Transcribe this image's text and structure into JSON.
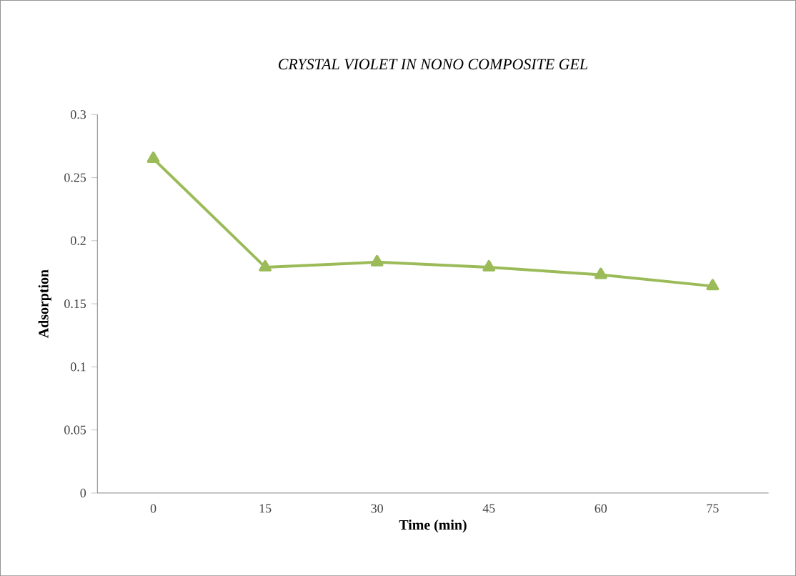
{
  "chart_data": {
    "type": "line",
    "title": "CRYSTAL VIOLET IN NONO COMPOSITE  GEL",
    "xlabel": "Time (min)",
    "ylabel": "Adsorption",
    "categories": [
      "0",
      "15",
      "30",
      "45",
      "60",
      "75"
    ],
    "series": [
      {
        "color": "#9bbb59",
        "values": [
          0.265,
          0.179,
          0.183,
          0.179,
          0.173,
          0.164
        ]
      }
    ],
    "ylim": [
      0,
      0.3
    ],
    "yticks": [
      0,
      0.05,
      0.1,
      0.15,
      0.2,
      0.25,
      0.3
    ],
    "marker": "triangle",
    "line_style": "solid"
  }
}
